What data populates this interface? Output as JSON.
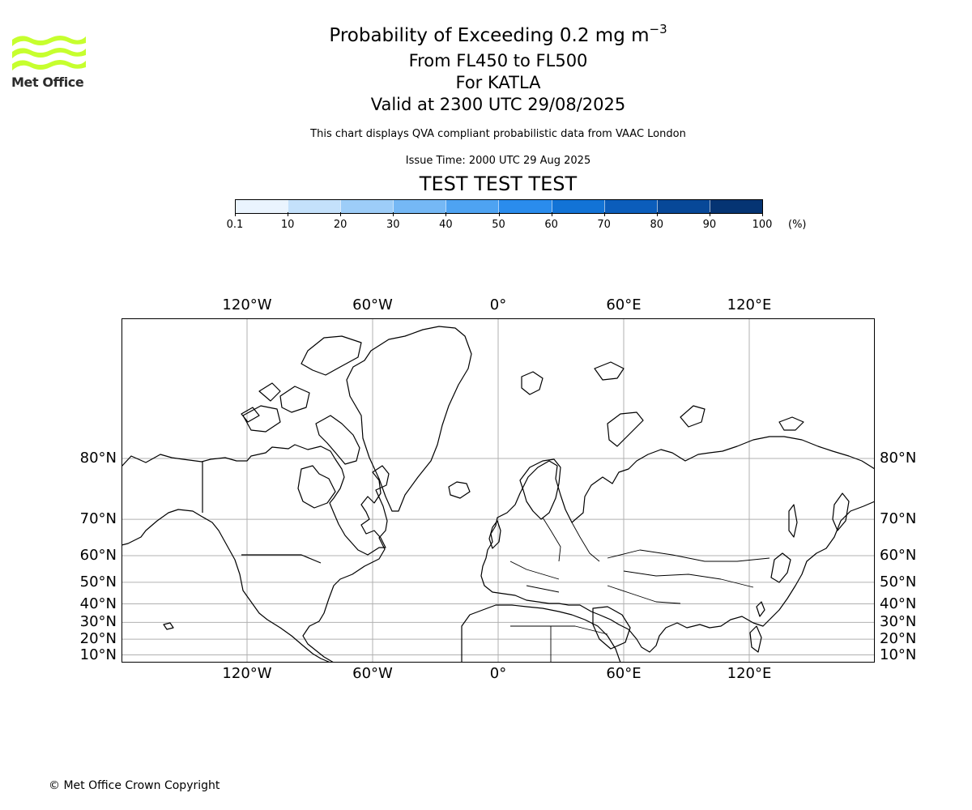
{
  "logo": {
    "name": "Met Office"
  },
  "header": {
    "title_main": "Probability of Exceeding 0.2 mg m",
    "title_exp": "−3",
    "levels": "From FL450 to FL500",
    "volcano": "For KATLA",
    "valid": "Valid at 2300 UTC 29/08/2025",
    "note": "This chart displays QVA compliant probabilistic data from VAAC London",
    "issue_time": "Issue Time: 2000 UTC 29 Aug 2025",
    "test_banner": "TEST TEST TEST"
  },
  "colorbar": {
    "ticks": [
      "0.1",
      "10",
      "20",
      "30",
      "40",
      "50",
      "60",
      "70",
      "80",
      "90",
      "100"
    ],
    "unit": "(%)",
    "colors": [
      "#eaf4fe",
      "#c4e1fb",
      "#9dcdf8",
      "#75b8f5",
      "#4ea3f2",
      "#2a8ced",
      "#1273d6",
      "#0b5dbb",
      "#074898",
      "#053473"
    ]
  },
  "map": {
    "projection": "Mercator",
    "lon_range": [
      -180,
      180
    ],
    "lat_range": [
      5,
      88
    ],
    "lon_labels": [
      "120°W",
      "60°W",
      "0°",
      "60°E",
      "120°E"
    ],
    "lat_labels": [
      "80°N",
      "70°N",
      "60°N",
      "50°N",
      "40°N",
      "30°N",
      "20°N",
      "10°N"
    ],
    "gridlines": true,
    "ash_probability_areas": []
  },
  "footer": {
    "copyright": "© Met Office Crown Copyright"
  }
}
